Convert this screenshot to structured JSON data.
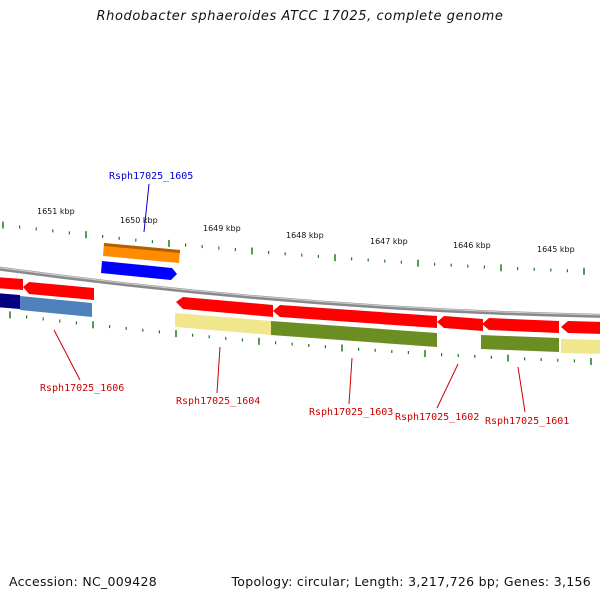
{
  "title": "Rhodobacter sphaeroides ATCC 17025, complete genome",
  "footer": {
    "accession": "Accession: NC_009428",
    "summary": "Topology: circular; Length: 3,217,726 bp; Genes: 3,156"
  },
  "colors": {
    "backbone": "#8a8a8a",
    "tick": "#1e7a1e",
    "gene_label_red": "#cc0000",
    "gene_label_blue": "#0000cc"
  },
  "ruler": {
    "labels": [
      "1651 kbp",
      "1650 kbp",
      "1649 kbp",
      "1648 kbp",
      "1647 kbp",
      "1646 kbp",
      "1645 kbp"
    ]
  },
  "gene_labels": {
    "g1605": "Rsph17025_1605",
    "g1606": "Rsph17025_1606",
    "g1604": "Rsph17025_1604",
    "g1603": "Rsph17025_1603",
    "g1602": "Rsph17025_1602",
    "g1601": "Rsph17025_1601"
  }
}
